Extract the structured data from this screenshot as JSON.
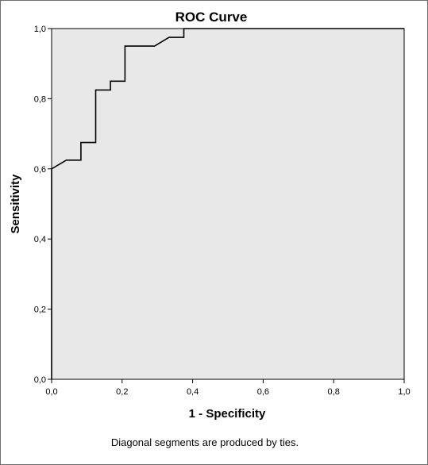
{
  "chart_data": {
    "type": "line",
    "title": "ROC Curve",
    "xlabel": "1 - Specificity",
    "ylabel": "Sensitivity",
    "footnote": "Diagonal segments are produced by ties.",
    "xlim": [
      0,
      1
    ],
    "ylim": [
      0,
      1
    ],
    "grid": false,
    "plot_background": "#e8e8e8",
    "line_color": "#000000",
    "x_ticks": [
      {
        "value": 0.0,
        "label": "0,0"
      },
      {
        "value": 0.2,
        "label": "0,2"
      },
      {
        "value": 0.4,
        "label": "0,4"
      },
      {
        "value": 0.6,
        "label": "0,6"
      },
      {
        "value": 0.8,
        "label": "0,8"
      },
      {
        "value": 1.0,
        "label": "1,0"
      }
    ],
    "y_ticks": [
      {
        "value": 0.0,
        "label": "0,0"
      },
      {
        "value": 0.2,
        "label": "0,2"
      },
      {
        "value": 0.4,
        "label": "0,4"
      },
      {
        "value": 0.6,
        "label": "0,6"
      },
      {
        "value": 0.8,
        "label": "0,8"
      },
      {
        "value": 1.0,
        "label": "1,0"
      }
    ],
    "series": [
      {
        "x": [
          0.0,
          0.0,
          0.042,
          0.083,
          0.083,
          0.125,
          0.125,
          0.167,
          0.167,
          0.208,
          0.208,
          0.292,
          0.333,
          0.375,
          0.375,
          1.0
        ],
        "y": [
          0.0,
          0.6,
          0.625,
          0.625,
          0.675,
          0.675,
          0.825,
          0.825,
          0.85,
          0.85,
          0.95,
          0.95,
          0.975,
          0.975,
          1.0,
          1.0
        ]
      }
    ]
  }
}
